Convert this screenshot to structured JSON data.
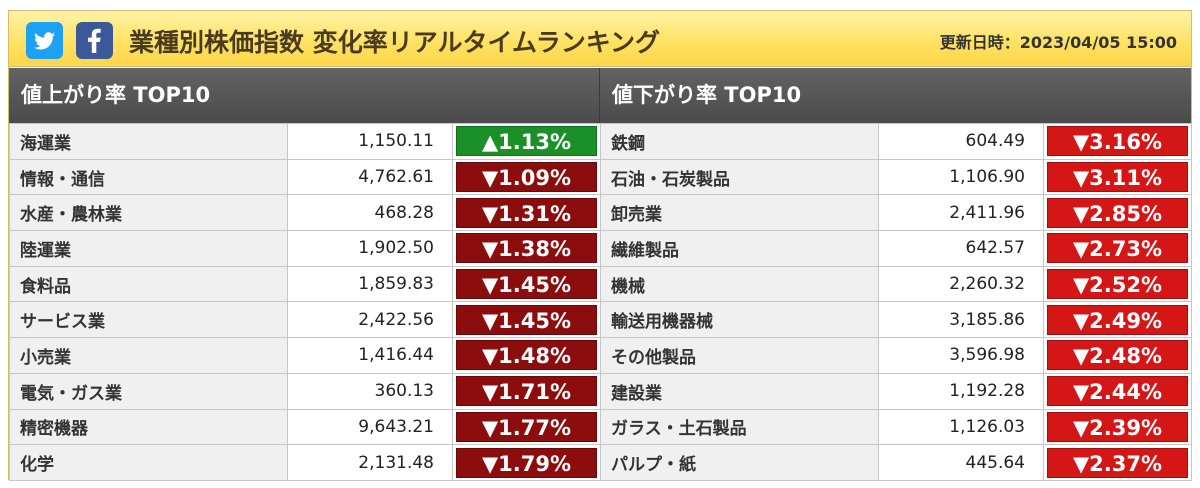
{
  "header": {
    "title": "業種別株価指数 変化率リアルタイムランキング",
    "updated": "更新日時：2023/04/05 15:00",
    "social": [
      {
        "name": "twitter",
        "icon": "twitter-bird-icon",
        "color": "#1da1f2"
      },
      {
        "name": "facebook",
        "icon": "facebook-f-icon",
        "color": "#3b5998"
      }
    ]
  },
  "colors": {
    "gain": "#1b8f28",
    "loss_left": "#8b0d0d",
    "loss_right": "#d51616"
  },
  "gainers": {
    "title": "値上がり率 TOP10",
    "rows": [
      {
        "name": "海運業",
        "price": "1,150.11",
        "change": "▲1.13%",
        "dir": "up"
      },
      {
        "name": "情報・通信",
        "price": "4,762.61",
        "change": "▼1.09%",
        "dir": "down"
      },
      {
        "name": "水産・農林業",
        "price": "468.28",
        "change": "▼1.31%",
        "dir": "down"
      },
      {
        "name": "陸運業",
        "price": "1,902.50",
        "change": "▼1.38%",
        "dir": "down"
      },
      {
        "name": "食料品",
        "price": "1,859.83",
        "change": "▼1.45%",
        "dir": "down"
      },
      {
        "name": "サービス業",
        "price": "2,422.56",
        "change": "▼1.45%",
        "dir": "down"
      },
      {
        "name": "小売業",
        "price": "1,416.44",
        "change": "▼1.48%",
        "dir": "down"
      },
      {
        "name": "電気・ガス業",
        "price": "360.13",
        "change": "▼1.71%",
        "dir": "down"
      },
      {
        "name": "精密機器",
        "price": "9,643.21",
        "change": "▼1.77%",
        "dir": "down"
      },
      {
        "name": "化学",
        "price": "2,131.48",
        "change": "▼1.79%",
        "dir": "down"
      }
    ]
  },
  "losers": {
    "title": "値下がり率 TOP10",
    "rows": [
      {
        "name": "鉄鋼",
        "price": "604.49",
        "change": "▼3.16%",
        "dir": "down"
      },
      {
        "name": "石油・石炭製品",
        "price": "1,106.90",
        "change": "▼3.11%",
        "dir": "down"
      },
      {
        "name": "卸売業",
        "price": "2,411.96",
        "change": "▼2.85%",
        "dir": "down"
      },
      {
        "name": "繊維製品",
        "price": "642.57",
        "change": "▼2.73%",
        "dir": "down"
      },
      {
        "name": "機械",
        "price": "2,260.32",
        "change": "▼2.52%",
        "dir": "down"
      },
      {
        "name": "輸送用機器械",
        "price": "3,185.86",
        "change": "▼2.49%",
        "dir": "down"
      },
      {
        "name": "その他製品",
        "price": "3,596.98",
        "change": "▼2.48%",
        "dir": "down"
      },
      {
        "name": "建設業",
        "price": "1,192.28",
        "change": "▼2.44%",
        "dir": "down"
      },
      {
        "name": "ガラス・土石製品",
        "price": "1,126.03",
        "change": "▼2.39%",
        "dir": "down"
      },
      {
        "name": "パルプ・紙",
        "price": "445.64",
        "change": "▼2.37%",
        "dir": "down"
      }
    ]
  }
}
